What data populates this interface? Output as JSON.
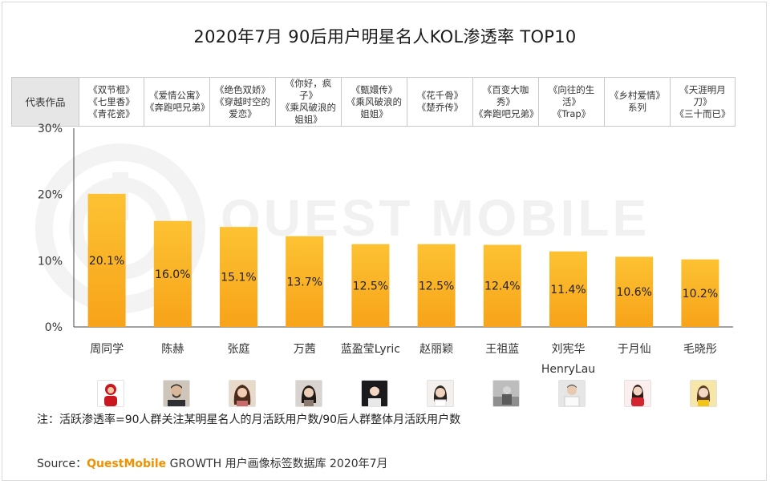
{
  "title": "2020年7月 90后用户明星名人KOL渗透率 TOP10",
  "watermark": "QUEST MOBILE",
  "table": {
    "header": "代表作品",
    "works": [
      "《双节棍》\n《七里香》\n《青花瓷》",
      "《爱情公寓》\n《奔跑吧兄弟》",
      "《绝色双娇》\n《穿越时空的\n爱恋》",
      "《你好，疯子》\n《乘风破浪的\n姐姐》",
      "《甄嬛传》\n《乘风破浪的\n姐姐》",
      "《花千骨》\n《楚乔传》",
      "《百变大咖秀》\n《奔跑吧兄弟》",
      "《向往的生活》\n《Trap》",
      "《乡村爱情》\n系列",
      "《天涯明月刀》\n《三十而已》"
    ]
  },
  "chart_data": {
    "type": "bar",
    "categories": [
      "周同学",
      "陈赫",
      "张庭",
      "万茜",
      "蓝盈莹Lyric",
      "赵丽颖",
      "王祖蓝",
      "刘宪华\nHenryLau",
      "于月仙",
      "毛晓彤"
    ],
    "values": [
      20.1,
      16.0,
      15.1,
      13.7,
      12.5,
      12.5,
      12.4,
      11.4,
      10.6,
      10.2
    ],
    "data_labels": [
      "20.1%",
      "16.0%",
      "15.1%",
      "13.7%",
      "12.5%",
      "12.5%",
      "12.4%",
      "11.4%",
      "10.6%",
      "10.2%"
    ],
    "yticks": [
      "0%",
      "10%",
      "20%",
      "30%"
    ],
    "ylim": [
      0,
      30
    ],
    "unit": "%",
    "colors": {
      "bar_top": "#fcc233",
      "bar_bottom": "#f8a319",
      "axis": "#444444"
    }
  },
  "avatars": [
    "red-figure",
    "man-beard",
    "woman-hair",
    "woman-dark",
    "woman-black",
    "woman-white",
    "man-street",
    "man-white",
    "woman-red",
    "woman-yellow"
  ],
  "note": "注：活跃渗透率=90人群关注某明星名人的月活跃用户数/90后人群整体月活跃用户数",
  "source": {
    "prefix": "Source：",
    "brand": "QuestMobile",
    "text": " GROWTH 用户画像标签数据库 2020年7月"
  }
}
